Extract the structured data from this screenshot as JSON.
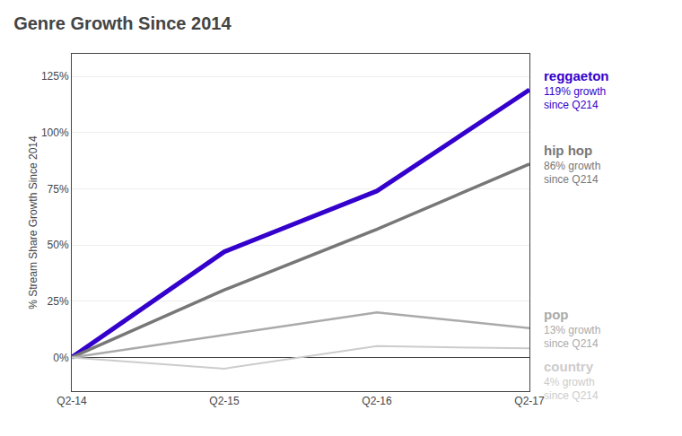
{
  "chart_data": {
    "type": "line",
    "title": "Genre Growth Since 2014",
    "ylabel": "% Stream Share Growth Since 2014",
    "categories": [
      "Q2-14",
      "Q2-15",
      "Q2-16",
      "Q2-17"
    ],
    "series": [
      {
        "name": "reggaeton",
        "color": "#3300cc",
        "values": [
          0,
          47,
          74,
          119
        ]
      },
      {
        "name": "hip hop",
        "color": "#777777",
        "values": [
          0,
          30,
          57,
          86
        ]
      },
      {
        "name": "pop",
        "color": "#aaaaaa",
        "values": [
          0,
          10,
          20,
          13
        ]
      },
      {
        "name": "country",
        "color": "#cccccc",
        "values": [
          0,
          -5,
          5,
          4
        ]
      }
    ],
    "annotations": [
      "119% growth\nsince Q214",
      "86% growth\nsince Q214",
      "13% growth\nsince Q214",
      "4% growth\nsince Q214"
    ],
    "ylim": [
      -15,
      135
    ],
    "yticks": [
      {
        "value": 0,
        "label": "0%"
      },
      {
        "value": 25,
        "label": "25%"
      },
      {
        "value": 50,
        "label": "50%"
      },
      {
        "value": 75,
        "label": "75%"
      },
      {
        "value": 100,
        "label": "100%"
      },
      {
        "value": 125,
        "label": "125%"
      }
    ],
    "grid": true
  }
}
